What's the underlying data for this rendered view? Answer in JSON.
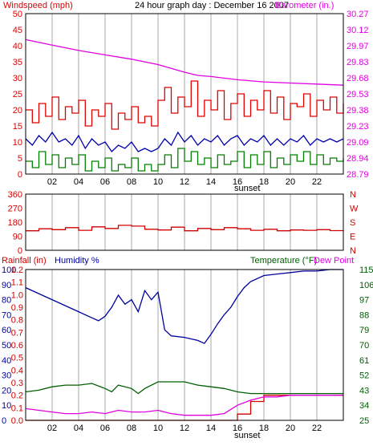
{
  "colors": {
    "wind_speed": "#e00000",
    "wind_avg": "#0000b0",
    "wind_gust_low": "#008000",
    "barometer": "#e000e0",
    "direction": "#d00000",
    "rainfall": "#d00000",
    "humidity": "#0000a0",
    "temperature": "#006000",
    "dewpoint": "#e000e0",
    "grid": "#a8a8a8",
    "frame": "#000000"
  },
  "chart_data": [
    {
      "type": "line",
      "title": "24 hour graph day : December 16 2007",
      "left_label": "Windspeed (mph)",
      "right_label": "Barometer (in.)",
      "x_tick_labels": [
        "02",
        "04",
        "06",
        "08",
        "10",
        "12",
        "14",
        "16",
        "18",
        "20",
        "22",
        ""
      ],
      "x_annotation": "sunset",
      "y_left_ticks": [
        "0",
        "5",
        "10",
        "15",
        "20",
        "25",
        "30",
        "35",
        "40",
        "45",
        "50"
      ],
      "y_right_ticks": [
        "28.79",
        "28.94",
        "29.09",
        "29.23",
        "29.38",
        "29.53",
        "29.68",
        "29.83",
        "29.97",
        "30.12",
        "30.27"
      ],
      "y_left_range": [
        0,
        50
      ],
      "y_right_range": [
        28.79,
        30.27
      ],
      "x_range_hours": [
        0,
        24
      ],
      "series": [
        {
          "key": "barometer",
          "axis": "right",
          "x": [
            0,
            2,
            4,
            6,
            8,
            10,
            12,
            13,
            14,
            16,
            18,
            20,
            22,
            24
          ],
          "values": [
            30.03,
            29.98,
            29.93,
            29.89,
            29.85,
            29.8,
            29.73,
            29.7,
            29.69,
            29.66,
            29.64,
            29.63,
            29.62,
            29.61
          ]
        },
        {
          "key": "wind_speed",
          "axis": "left",
          "x": [
            0,
            0.5,
            1,
            1.5,
            2,
            2.5,
            3,
            3.5,
            4,
            4.5,
            5,
            5.5,
            6,
            6.5,
            7,
            7.5,
            8,
            8.5,
            9,
            9.5,
            10,
            10.5,
            11,
            11.5,
            12,
            12.5,
            13,
            13.5,
            14,
            14.5,
            15,
            15.5,
            16,
            16.5,
            17,
            17.5,
            18,
            18.5,
            19,
            19.5,
            20,
            20.5,
            21,
            21.5,
            22,
            22.5,
            23,
            23.5,
            24
          ],
          "values": [
            20,
            16,
            22,
            18,
            24,
            17,
            21,
            19,
            23,
            15,
            20,
            18,
            22,
            14,
            19,
            17,
            21,
            16,
            18,
            15,
            23,
            27,
            19,
            24,
            21,
            29,
            18,
            23,
            20,
            26,
            17,
            22,
            25,
            18,
            23,
            20,
            26,
            19,
            24,
            17,
            22,
            21,
            25,
            18,
            23,
            20,
            24,
            19,
            22
          ]
        },
        {
          "key": "wind_avg",
          "axis": "left",
          "x": [
            0,
            0.5,
            1,
            1.5,
            2,
            2.5,
            3,
            3.5,
            4,
            4.5,
            5,
            5.5,
            6,
            6.5,
            7,
            7.5,
            8,
            8.5,
            9,
            9.5,
            10,
            10.5,
            11,
            11.5,
            12,
            12.5,
            13,
            13.5,
            14,
            14.5,
            15,
            15.5,
            16,
            16.5,
            17,
            17.5,
            18,
            18.5,
            19,
            19.5,
            20,
            20.5,
            21,
            21.5,
            22,
            22.5,
            23,
            23.5,
            24
          ],
          "values": [
            11,
            9,
            12,
            10,
            13,
            10,
            11,
            9,
            12,
            8,
            11,
            9,
            10,
            7,
            9,
            8,
            10,
            7,
            8,
            7,
            8,
            11,
            9,
            13,
            10,
            12,
            9,
            11,
            10,
            12,
            9,
            11,
            12,
            9,
            11,
            10,
            12,
            9,
            11,
            9,
            11,
            10,
            12,
            9,
            11,
            10,
            11,
            10,
            11
          ]
        },
        {
          "key": "wind_gust_low",
          "axis": "left",
          "x": [
            0,
            0.5,
            1,
            1.5,
            2,
            2.5,
            3,
            3.5,
            4,
            4.5,
            5,
            5.5,
            6,
            6.5,
            7,
            7.5,
            8,
            8.5,
            9,
            9.5,
            10,
            10.5,
            11,
            11.5,
            12,
            12.5,
            13,
            13.5,
            14,
            14.5,
            15,
            15.5,
            16,
            16.5,
            17,
            17.5,
            18,
            18.5,
            19,
            19.5,
            20,
            20.5,
            21,
            21.5,
            22,
            22.5,
            23,
            23.5,
            24
          ],
          "values": [
            4,
            2,
            7,
            3,
            6,
            2,
            5,
            3,
            6,
            1,
            4,
            2,
            5,
            1,
            3,
            2,
            5,
            1,
            3,
            1,
            3,
            6,
            2,
            8,
            4,
            7,
            3,
            5,
            2,
            6,
            3,
            4,
            7,
            2,
            6,
            3,
            7,
            2,
            5,
            3,
            6,
            4,
            7,
            3,
            6,
            3,
            5,
            4,
            5
          ]
        }
      ]
    },
    {
      "type": "line",
      "left_label": "",
      "right_labels": [
        "N",
        "W",
        "S",
        "E",
        "N"
      ],
      "y_left_ticks": [
        "0",
        "90",
        "180",
        "270",
        "360"
      ],
      "y_left_range": [
        0,
        360
      ],
      "x_range_hours": [
        0,
        24
      ],
      "series": [
        {
          "key": "direction",
          "axis": "left",
          "x": [
            0,
            1,
            2,
            3,
            4,
            5,
            6,
            7,
            8,
            9,
            10,
            11,
            12,
            13,
            14,
            15,
            16,
            17,
            18,
            19,
            20,
            21,
            22,
            23,
            24
          ],
          "values": [
            125,
            138,
            132,
            145,
            128,
            150,
            140,
            160,
            155,
            135,
            130,
            148,
            125,
            140,
            132,
            145,
            138,
            128,
            135,
            125,
            130,
            128,
            132,
            126,
            128
          ]
        }
      ]
    },
    {
      "type": "line",
      "left_labels": [
        "Rainfall (in)",
        "Humidity %"
      ],
      "right_labels": [
        "Temperature (°F)",
        "Dew Point"
      ],
      "x_tick_labels": [
        "02",
        "04",
        "06",
        "08",
        "10",
        "12",
        "14",
        "16",
        "18",
        "20",
        "22",
        ""
      ],
      "x_annotation": "sunset",
      "y_humidity_ticks": [
        "0",
        "10",
        "20",
        "30",
        "40",
        "50",
        "60",
        "70",
        "80",
        "90",
        "100"
      ],
      "y_rain_ticks": [
        "0.0",
        "0.1",
        "0.2",
        "0.3",
        "0.4",
        "0.5",
        "0.6",
        "0.7",
        "0.8",
        "0.9",
        "1.0",
        "1.1",
        "1.2"
      ],
      "y_temp_ticks": [
        "25",
        "34",
        "43",
        "52",
        "61",
        "70",
        "79",
        "88",
        "97",
        "106",
        "115"
      ],
      "y_humidity_range": [
        0,
        100
      ],
      "y_rain_range": [
        0,
        1.2
      ],
      "y_temp_range": [
        25,
        115
      ],
      "x_range_hours": [
        0,
        24
      ],
      "series": [
        {
          "key": "humidity",
          "axis": "humidity",
          "x": [
            0,
            1,
            2,
            3,
            4,
            5,
            5.5,
            6,
            6.5,
            7,
            7.5,
            8,
            8.5,
            9,
            9.5,
            10,
            10.5,
            11,
            12,
            13,
            13.5,
            14,
            14.5,
            15,
            15.5,
            16,
            16.5,
            17,
            18,
            19,
            20,
            21,
            22,
            23,
            24
          ],
          "values": [
            88,
            84,
            80,
            76,
            72,
            68,
            66,
            69,
            75,
            83,
            77,
            80,
            72,
            86,
            80,
            85,
            60,
            56,
            55,
            53,
            51,
            57,
            64,
            70,
            75,
            82,
            88,
            92,
            96,
            97,
            98,
            99,
            99,
            100,
            100
          ]
        },
        {
          "key": "rainfall",
          "axis": "rain",
          "x": [
            0,
            15,
            16,
            17,
            18,
            19,
            20,
            22,
            24
          ],
          "values": [
            0,
            0,
            0.05,
            0.15,
            0.2,
            0.2,
            0.2,
            0.2,
            0.2
          ]
        },
        {
          "key": "temperature",
          "axis": "temp",
          "x": [
            0,
            1,
            2,
            3,
            4,
            5,
            6,
            6.5,
            7,
            8,
            8.5,
            9,
            10,
            11,
            12,
            13,
            14,
            15,
            16,
            17,
            18,
            19,
            20,
            22,
            24
          ],
          "values": [
            42,
            43,
            45,
            46,
            46,
            47,
            44,
            42,
            46,
            44,
            41,
            44,
            48,
            48,
            48,
            46,
            45,
            44,
            42,
            41,
            41,
            41,
            41,
            41,
            41
          ]
        },
        {
          "key": "dewpoint",
          "axis": "temp",
          "x": [
            0,
            1,
            2,
            3,
            4,
            5,
            6,
            7,
            8,
            9,
            10,
            11,
            12,
            13,
            14,
            15,
            16,
            17,
            18,
            19,
            20,
            22,
            24
          ],
          "values": [
            32,
            31,
            30,
            29,
            29,
            30,
            29,
            31,
            30,
            30,
            31,
            29,
            28,
            28,
            28,
            29,
            34,
            37,
            39,
            39,
            40,
            40,
            40
          ]
        }
      ]
    }
  ]
}
